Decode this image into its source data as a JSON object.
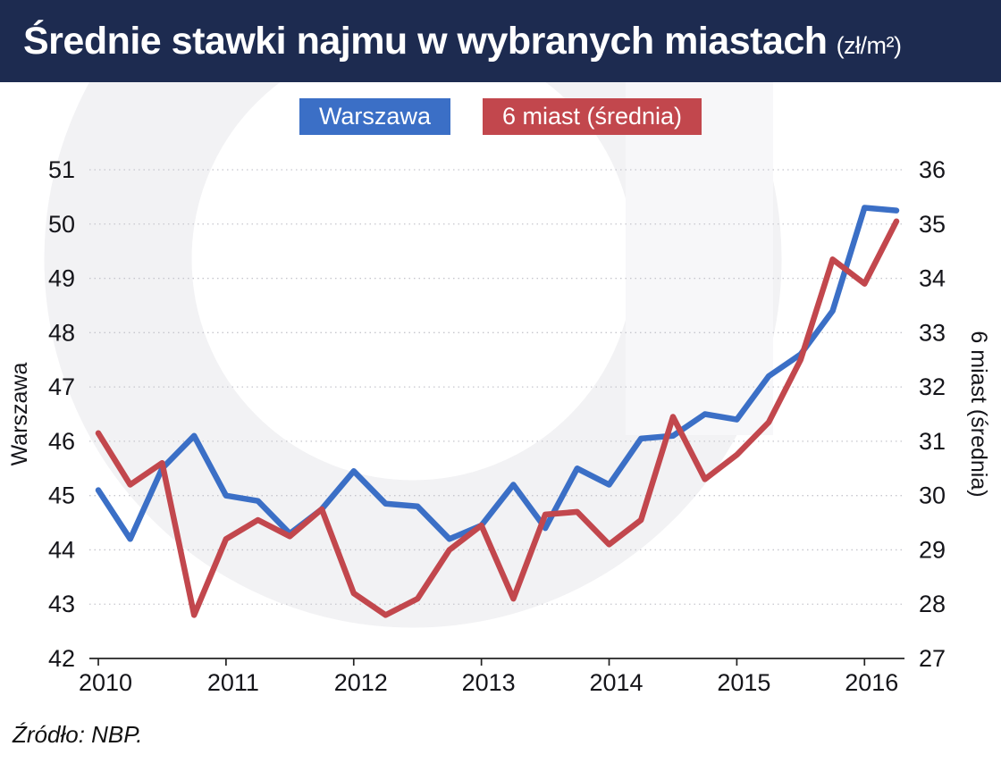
{
  "header": {
    "title": "Średnie stawki najmu w wybranych miastach",
    "title_suffix": "(zł/m²)"
  },
  "chart_data": {
    "type": "line",
    "title": "Średnie stawki najmu w wybranych miastach",
    "title_suffix": "(zł/m²)",
    "x": [
      "2010 Q1",
      "2010 Q2",
      "2010 Q3",
      "2010 Q4",
      "2011 Q1",
      "2011 Q2",
      "2011 Q3",
      "2011 Q4",
      "2012 Q1",
      "2012 Q2",
      "2012 Q3",
      "2012 Q4",
      "2013 Q1",
      "2013 Q2",
      "2013 Q3",
      "2013 Q4",
      "2014 Q1",
      "2014 Q2",
      "2014 Q3",
      "2014 Q4",
      "2015 Q1",
      "2015 Q2",
      "2015 Q3",
      "2015 Q4",
      "2016 Q1",
      "2016 Q2"
    ],
    "x_tick_labels": [
      "2010",
      "2011",
      "2012",
      "2013",
      "2014",
      "2015",
      "2016"
    ],
    "x_tick_indices": [
      0,
      4,
      8,
      12,
      16,
      20,
      24
    ],
    "series": [
      {
        "name": "Warszawa",
        "axis": "left",
        "color": "#3b6fc6",
        "values": [
          45.1,
          44.2,
          45.5,
          46.1,
          45.0,
          44.9,
          44.3,
          44.75,
          45.45,
          44.85,
          44.8,
          44.2,
          44.45,
          45.2,
          44.4,
          45.5,
          45.2,
          46.05,
          46.1,
          46.5,
          46.4,
          47.2,
          47.6,
          48.4,
          50.3,
          50.25
        ]
      },
      {
        "name": "6 miast (średnia)",
        "axis": "right",
        "color": "#c2474d",
        "values": [
          31.15,
          30.2,
          30.6,
          27.8,
          29.2,
          29.55,
          29.25,
          29.75,
          28.2,
          27.8,
          28.1,
          29.0,
          29.45,
          28.1,
          29.65,
          29.7,
          29.1,
          29.55,
          31.45,
          30.3,
          30.75,
          31.35,
          32.5,
          34.35,
          33.9,
          35.05
        ]
      }
    ],
    "left_axis": {
      "label": "Warszawa",
      "min": 42,
      "max": 51,
      "step": 1
    },
    "right_axis": {
      "label": "6 miast (średnia)",
      "min": 27,
      "max": 36,
      "step": 1
    },
    "grid": true,
    "legend_position": "top",
    "source": "Źródło: NBP.",
    "colors": {
      "header_bg": "#1d2b50",
      "grid": "#c6c6cd",
      "axis": "#222222",
      "watermark": "#f2f2f4"
    }
  }
}
